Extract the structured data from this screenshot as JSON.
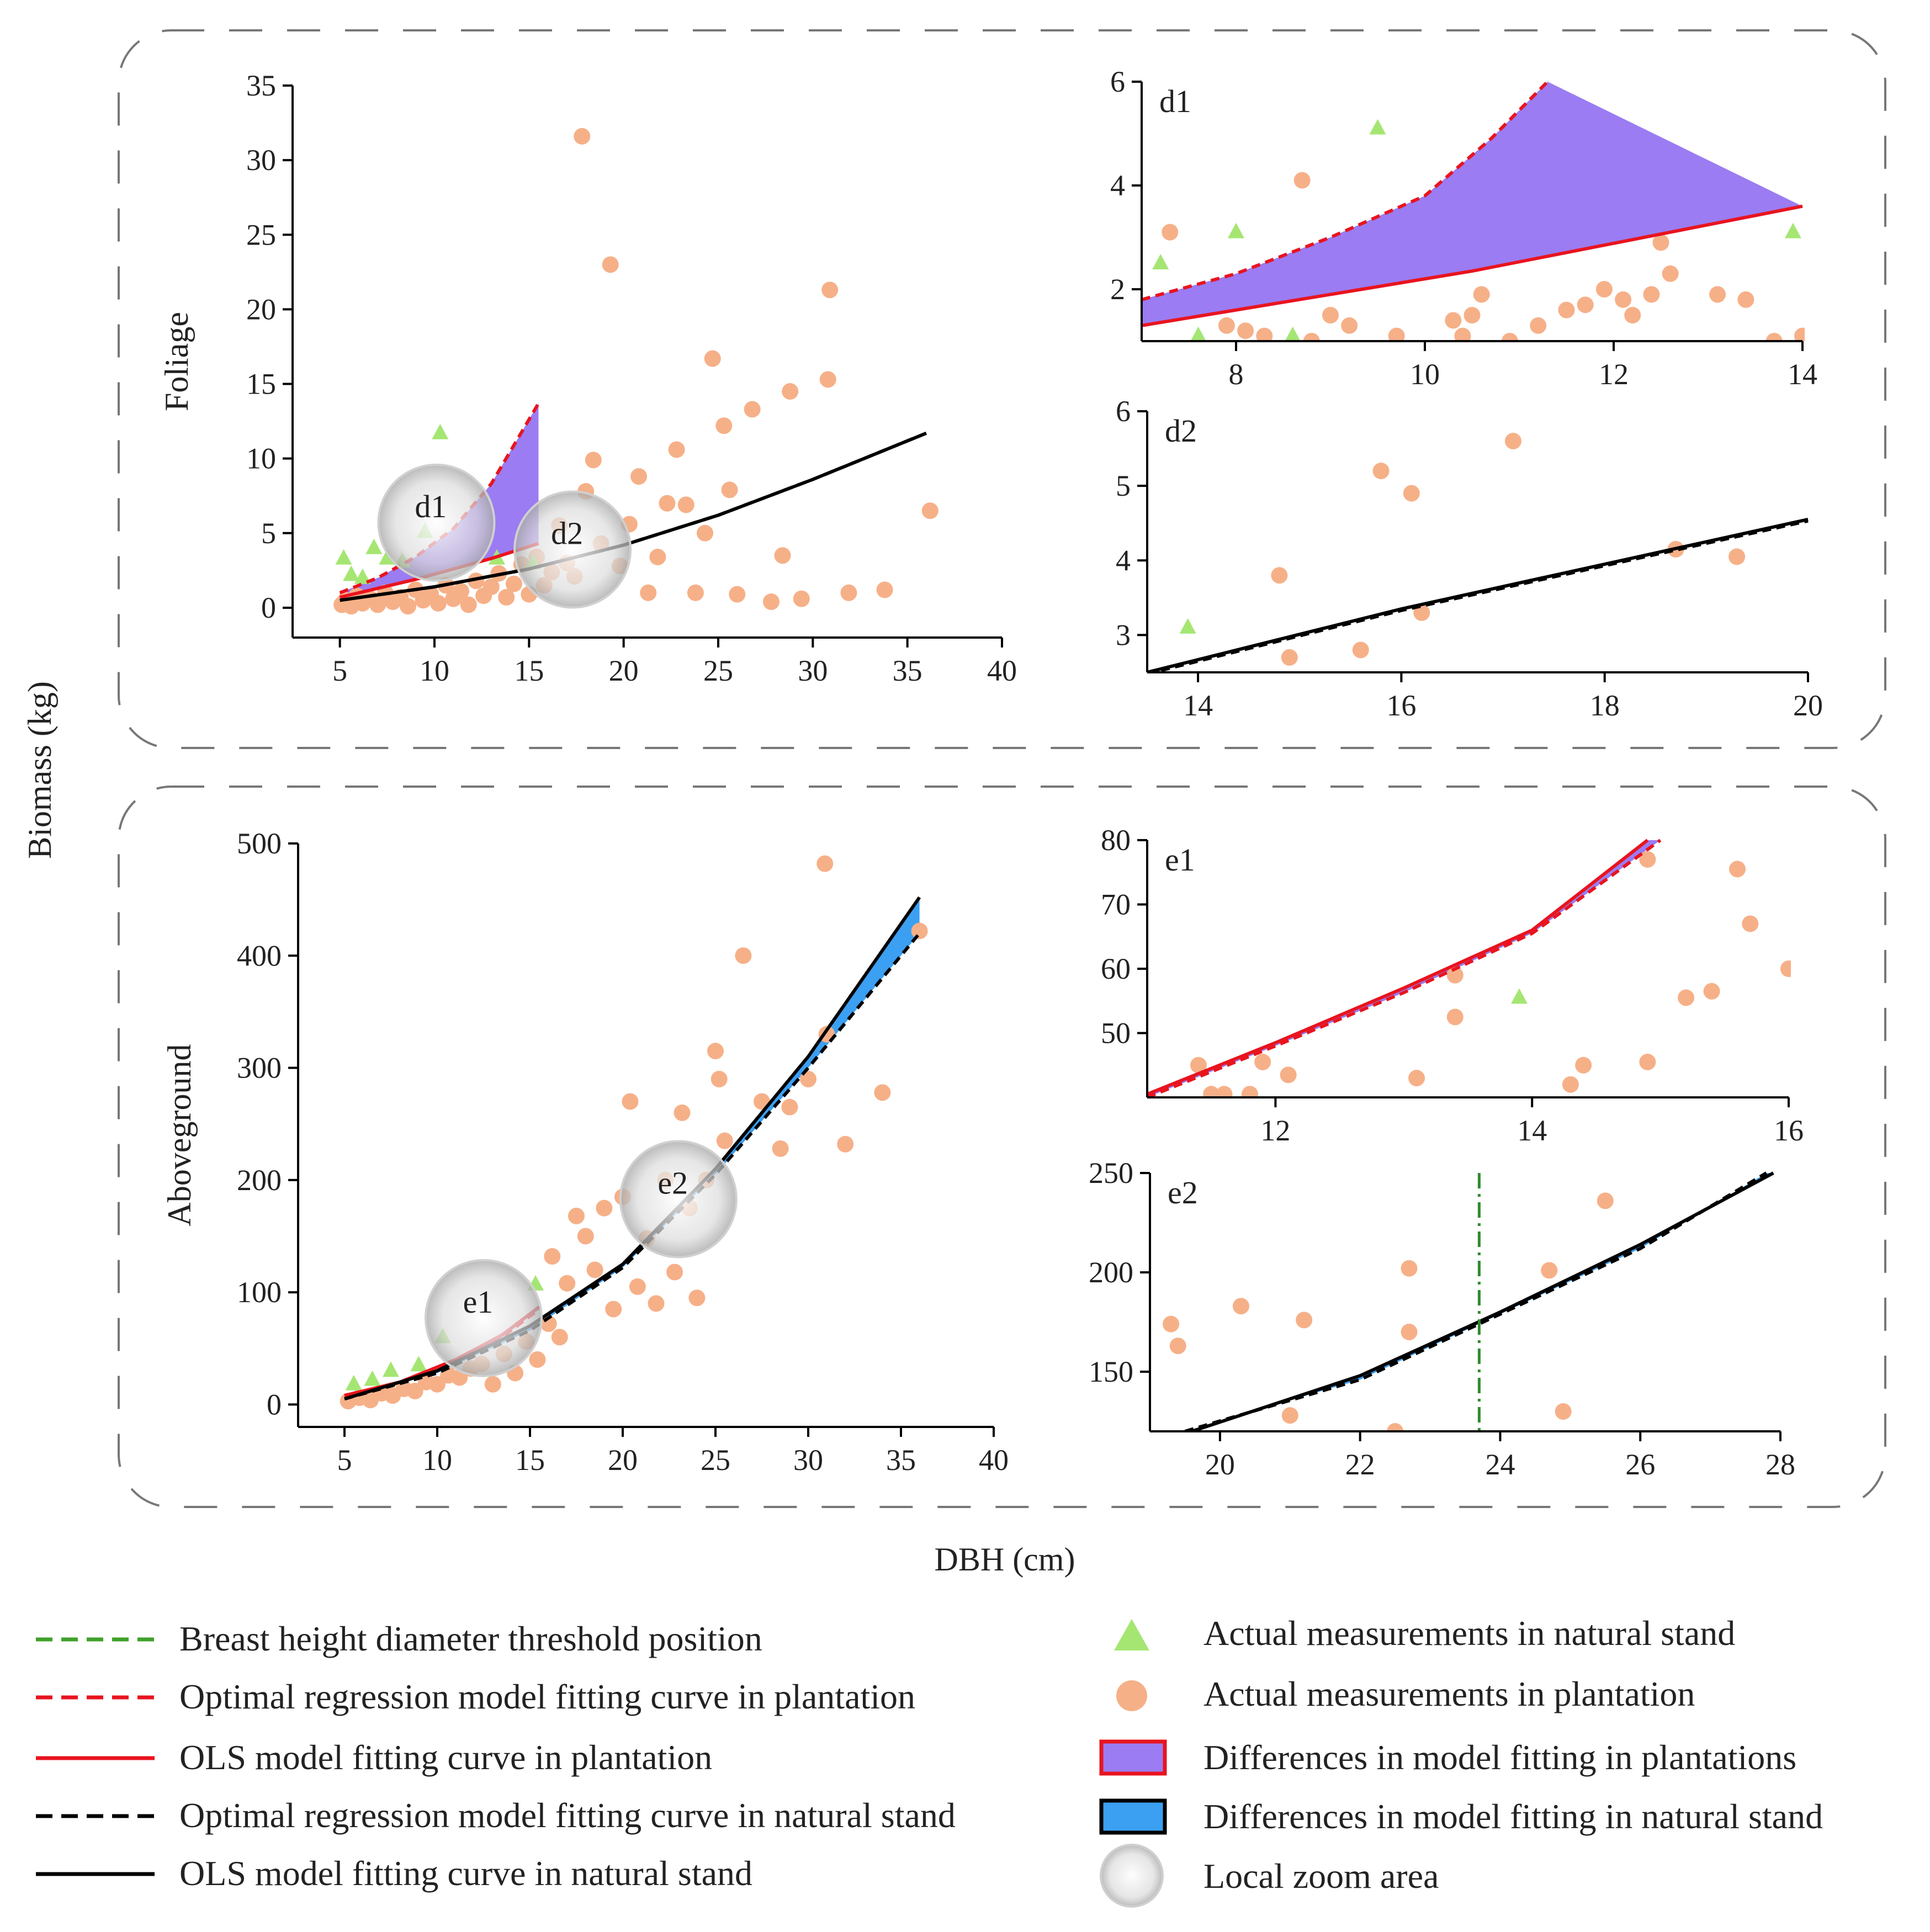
{
  "figure": {
    "ylabel": "Biomass (kg)",
    "xlabel": "DBH (cm)"
  },
  "colors": {
    "natural_points": "#9be36d",
    "plantation_points": "#f4a97c",
    "plantation_fill": "#9b7cf2",
    "natural_fill": "#3b9ff2",
    "plantation_ols": "#e8141f",
    "plantation_opt": "#e8141f",
    "natural_ols": "#000000",
    "natural_opt": "#000000",
    "threshold": "#2e8b2e"
  },
  "legend": {
    "left": [
      {
        "label": "Breast height diameter threshold position",
        "icon": "green-dashed-line"
      },
      {
        "label": "Optimal regression model fitting curve in plantation",
        "icon": "red-dashed-line"
      },
      {
        "label": "OLS model fitting curve in plantation",
        "icon": "red-solid-line"
      },
      {
        "label": "Optimal regression model fitting curve in natural stand",
        "icon": "black-dashed-line"
      },
      {
        "label": "OLS model fitting curve in natural stand",
        "icon": "black-solid-line"
      }
    ],
    "right": [
      {
        "label": "Actual measurements in natural stand",
        "icon": "green-triangle"
      },
      {
        "label": "Actual measurements in plantation",
        "icon": "orange-circle"
      },
      {
        "label": "Differences in model fitting in plantations",
        "icon": "purple-box"
      },
      {
        "label": "Differences in model fitting in natural stand",
        "icon": "blue-box"
      },
      {
        "label": "Local zoom area",
        "icon": "zoom-circle"
      }
    ]
  },
  "chart_data": [
    {
      "id": "foliage-main",
      "type": "scatter",
      "ylabel": "Foliage",
      "xlim": [
        2.5,
        40
      ],
      "ylim": [
        -2,
        35
      ],
      "xticks": [
        5,
        10,
        15,
        20,
        25,
        30,
        35,
        40
      ],
      "yticks": [
        0,
        5,
        10,
        15,
        20,
        25,
        30,
        35
      ],
      "zoom_areas": [
        {
          "label": "d1",
          "x": 10.1,
          "y": 5.7
        },
        {
          "label": "d2",
          "x": 17.3,
          "y": 3.9
        }
      ],
      "plantation_ols": [
        [
          5,
          0.7
        ],
        [
          7,
          1.3
        ],
        [
          9,
          1.9
        ],
        [
          11,
          2.6
        ],
        [
          13,
          3.3
        ],
        [
          15.5,
          4.3
        ]
      ],
      "plantation_opt": [
        [
          5,
          1.0
        ],
        [
          7,
          2.0
        ],
        [
          9,
          3.4
        ],
        [
          11,
          5.3
        ],
        [
          13,
          8.3
        ],
        [
          15.5,
          13.7
        ]
      ],
      "natural_ols": [
        [
          5,
          0.5
        ],
        [
          10,
          1.4
        ],
        [
          15,
          2.6
        ],
        [
          20,
          4.2
        ],
        [
          25,
          6.2
        ],
        [
          30,
          8.6
        ],
        [
          36,
          11.7
        ]
      ],
      "natural_opt": [
        [
          5,
          0.5
        ],
        [
          10,
          1.4
        ],
        [
          15,
          2.6
        ],
        [
          20,
          4.2
        ],
        [
          25,
          6.2
        ],
        [
          30,
          8.6
        ],
        [
          36,
          11.7
        ]
      ],
      "natural_points": [
        [
          5.2,
          3.3
        ],
        [
          5.6,
          2.2
        ],
        [
          6.2,
          2.0
        ],
        [
          6.8,
          4.0
        ],
        [
          7.5,
          3.3
        ],
        [
          8.3,
          3.1
        ],
        [
          10.3,
          11.7
        ],
        [
          9.5,
          5.1
        ],
        [
          13.3,
          3.3
        ],
        [
          15.2,
          3.0
        ]
      ],
      "plantation_points": [
        [
          5.1,
          0.2
        ],
        [
          5.3,
          0.5
        ],
        [
          5.6,
          0.1
        ],
        [
          5.9,
          0.8
        ],
        [
          6.2,
          0.3
        ],
        [
          6.6,
          0.6
        ],
        [
          7.0,
          0.2
        ],
        [
          7.4,
          1.0
        ],
        [
          7.8,
          0.4
        ],
        [
          8.2,
          0.7
        ],
        [
          8.6,
          0.1
        ],
        [
          9.0,
          1.2
        ],
        [
          9.4,
          0.5
        ],
        [
          9.8,
          0.9
        ],
        [
          10.2,
          0.3
        ],
        [
          10.6,
          1.5
        ],
        [
          11.0,
          0.6
        ],
        [
          11.4,
          1.1
        ],
        [
          11.8,
          0.2
        ],
        [
          12.2,
          1.8
        ],
        [
          12.6,
          0.8
        ],
        [
          13.0,
          1.4
        ],
        [
          13.4,
          2.3
        ],
        [
          13.8,
          0.7
        ],
        [
          14.2,
          1.6
        ],
        [
          14.6,
          2.9
        ],
        [
          15.0,
          0.9
        ],
        [
          15.4,
          3.4
        ],
        [
          15.8,
          1.5
        ],
        [
          16.2,
          2.4
        ],
        [
          16.6,
          5.5
        ],
        [
          17.0,
          3.0
        ],
        [
          17.4,
          2.1
        ],
        [
          17.8,
          31.6
        ],
        [
          18.0,
          7.8
        ],
        [
          18.4,
          9.9
        ],
        [
          18.8,
          4.3
        ],
        [
          19.3,
          23.0
        ],
        [
          19.8,
          2.8
        ],
        [
          20.3,
          5.6
        ],
        [
          20.8,
          8.8
        ],
        [
          21.3,
          1.0
        ],
        [
          21.8,
          3.4
        ],
        [
          22.3,
          7.0
        ],
        [
          22.8,
          10.6
        ],
        [
          23.3,
          6.9
        ],
        [
          23.8,
          1.0
        ],
        [
          24.3,
          5.0
        ],
        [
          24.7,
          16.7
        ],
        [
          25.3,
          12.2
        ],
        [
          25.6,
          7.9
        ],
        [
          26.0,
          0.9
        ],
        [
          26.8,
          13.3
        ],
        [
          27.8,
          0.4
        ],
        [
          28.4,
          3.5
        ],
        [
          28.8,
          14.5
        ],
        [
          29.4,
          0.6
        ],
        [
          30.8,
          15.3
        ],
        [
          30.9,
          21.3
        ],
        [
          31.9,
          1.0
        ],
        [
          33.8,
          1.2
        ],
        [
          36.2,
          6.5
        ]
      ]
    },
    {
      "id": "d1",
      "type": "scatter",
      "title": "d1",
      "xlim": [
        7,
        14
      ],
      "ylim": [
        1,
        6
      ],
      "xticks": [
        8,
        10,
        12,
        14
      ],
      "yticks": [
        2,
        4,
        6
      ],
      "plantation_ols": [
        [
          7,
          1.3
        ],
        [
          10.5,
          2.35
        ],
        [
          14,
          3.6
        ]
      ],
      "plantation_opt": [
        [
          7,
          1.8
        ],
        [
          8,
          2.3
        ],
        [
          9,
          3.0
        ],
        [
          10,
          3.8
        ],
        [
          10.7,
          4.9
        ],
        [
          11.3,
          6.0
        ]
      ],
      "natural_points": [
        [
          7.2,
          2.5
        ],
        [
          8.0,
          3.1
        ],
        [
          9.5,
          5.1
        ],
        [
          13.9,
          3.1
        ],
        [
          7.6,
          1.1
        ],
        [
          8.6,
          1.1
        ]
      ],
      "plantation_points": [
        [
          7.3,
          3.1
        ],
        [
          7.9,
          1.3
        ],
        [
          8.1,
          1.2
        ],
        [
          8.3,
          1.1
        ],
        [
          8.7,
          4.1
        ],
        [
          8.8,
          1.0
        ],
        [
          9.0,
          1.5
        ],
        [
          9.2,
          1.3
        ],
        [
          9.7,
          1.1
        ],
        [
          10.3,
          1.4
        ],
        [
          10.4,
          1.1
        ],
        [
          10.5,
          1.5
        ],
        [
          10.6,
          1.9
        ],
        [
          10.9,
          1.0
        ],
        [
          11.2,
          1.3
        ],
        [
          11.5,
          1.6
        ],
        [
          11.7,
          1.7
        ],
        [
          11.9,
          2.0
        ],
        [
          12.1,
          1.8
        ],
        [
          12.2,
          1.5
        ],
        [
          12.4,
          1.9
        ],
        [
          12.5,
          2.9
        ],
        [
          12.6,
          2.3
        ],
        [
          13.1,
          1.9
        ],
        [
          13.4,
          1.8
        ],
        [
          13.7,
          1.0
        ],
        [
          14.0,
          1.1
        ]
      ]
    },
    {
      "id": "d2",
      "type": "scatter",
      "title": "d2",
      "xlim": [
        13.5,
        20
      ],
      "ylim": [
        2.5,
        6
      ],
      "xticks": [
        14,
        16,
        18,
        20
      ],
      "yticks": [
        3,
        4,
        5,
        6
      ],
      "natural_ols": [
        [
          13.5,
          2.5
        ],
        [
          16,
          3.35
        ],
        [
          18,
          3.95
        ],
        [
          20,
          4.55
        ]
      ],
      "natural_opt": [
        [
          13.5,
          2.48
        ],
        [
          16,
          3.33
        ],
        [
          18,
          3.93
        ],
        [
          20,
          4.53
        ]
      ],
      "natural_points": [
        [
          13.9,
          3.1
        ]
      ],
      "plantation_points": [
        [
          14.8,
          3.8
        ],
        [
          14.9,
          2.7
        ],
        [
          15.6,
          2.8
        ],
        [
          15.8,
          5.2
        ],
        [
          16.1,
          4.9
        ],
        [
          16.2,
          3.3
        ],
        [
          17.1,
          5.6
        ],
        [
          18.7,
          4.15
        ],
        [
          19.3,
          4.05
        ]
      ]
    },
    {
      "id": "aboveground-main",
      "type": "scatter",
      "ylabel": "Aboveground",
      "xlim": [
        2.5,
        40
      ],
      "ylim": [
        -20,
        500
      ],
      "xticks": [
        5,
        10,
        15,
        20,
        25,
        30,
        35,
        40
      ],
      "yticks": [
        0,
        100,
        200,
        300,
        400,
        500
      ],
      "zoom_areas": [
        {
          "label": "e1",
          "x": 12.5,
          "y": 77
        },
        {
          "label": "e2",
          "x": 23.0,
          "y": 183
        }
      ],
      "plantation_ols": [
        [
          5,
          8
        ],
        [
          8,
          20
        ],
        [
          11,
          40
        ],
        [
          13.5,
          62
        ],
        [
          15.5,
          87
        ]
      ],
      "plantation_opt": [
        [
          5,
          8
        ],
        [
          8,
          19
        ],
        [
          11,
          38
        ],
        [
          13.5,
          60
        ],
        [
          15.5,
          85
        ]
      ],
      "natural_ols": [
        [
          5,
          5
        ],
        [
          10,
          30
        ],
        [
          15,
          70
        ],
        [
          20,
          125
        ],
        [
          25,
          210
        ],
        [
          30,
          310
        ],
        [
          36,
          452
        ]
      ],
      "natural_opt": [
        [
          5,
          5
        ],
        [
          10,
          28
        ],
        [
          15,
          66
        ],
        [
          20,
          122
        ],
        [
          25,
          205
        ],
        [
          30,
          300
        ],
        [
          36,
          420
        ]
      ],
      "natural_points": [
        [
          5.5,
          18
        ],
        [
          6.5,
          22
        ],
        [
          7.5,
          30
        ],
        [
          9,
          35
        ],
        [
          10.3,
          60
        ],
        [
          15.3,
          107
        ]
      ],
      "plantation_points": [
        [
          5.2,
          3
        ],
        [
          5.8,
          6
        ],
        [
          6.4,
          4
        ],
        [
          7.0,
          10
        ],
        [
          7.6,
          8
        ],
        [
          8.2,
          14
        ],
        [
          8.8,
          12
        ],
        [
          9.4,
          20
        ],
        [
          10.0,
          18
        ],
        [
          10.6,
          26
        ],
        [
          11.2,
          24
        ],
        [
          11.8,
          32
        ],
        [
          12.4,
          36
        ],
        [
          13.0,
          18
        ],
        [
          13.6,
          45
        ],
        [
          14.2,
          28
        ],
        [
          14.8,
          56
        ],
        [
          15.4,
          40
        ],
        [
          16.0,
          72
        ],
        [
          16.2,
          132
        ],
        [
          16.6,
          60
        ],
        [
          17.0,
          108
        ],
        [
          17.5,
          168
        ],
        [
          18.0,
          150
        ],
        [
          18.5,
          120
        ],
        [
          19.0,
          175
        ],
        [
          19.5,
          85
        ],
        [
          20.0,
          185
        ],
        [
          20.4,
          270
        ],
        [
          20.8,
          105
        ],
        [
          21.3,
          148
        ],
        [
          21.8,
          90
        ],
        [
          22.3,
          200
        ],
        [
          22.8,
          118
        ],
        [
          23.2,
          260
        ],
        [
          23.6,
          175
        ],
        [
          24.0,
          95
        ],
        [
          24.5,
          200
        ],
        [
          25.0,
          315
        ],
        [
          25.2,
          290
        ],
        [
          25.5,
          235
        ],
        [
          26.5,
          400
        ],
        [
          27.5,
          270
        ],
        [
          28.5,
          228
        ],
        [
          29.0,
          265
        ],
        [
          30.0,
          290
        ],
        [
          31.0,
          330
        ],
        [
          30.9,
          482
        ],
        [
          32.0,
          232
        ],
        [
          34.0,
          278
        ],
        [
          36.0,
          422
        ]
      ]
    },
    {
      "id": "e1",
      "type": "scatter",
      "title": "e1",
      "xlim": [
        11,
        16
      ],
      "ylim": [
        40,
        80
      ],
      "xticks": [
        12,
        14,
        16
      ],
      "yticks": [
        50,
        60,
        70,
        80
      ],
      "plantation_ols": [
        [
          11,
          40.5
        ],
        [
          12,
          48.5
        ],
        [
          13,
          57
        ],
        [
          14,
          66
        ],
        [
          14.9,
          80
        ]
      ],
      "plantation_opt": [
        [
          11,
          40
        ],
        [
          12,
          48
        ],
        [
          13,
          56.3
        ],
        [
          14,
          65.5
        ],
        [
          15.0,
          80
        ]
      ],
      "natural_points": [
        [
          13.9,
          55.5
        ]
      ],
      "plantation_points": [
        [
          11.4,
          45
        ],
        [
          11.5,
          40.5
        ],
        [
          11.6,
          40.5
        ],
        [
          11.8,
          40.5
        ],
        [
          11.9,
          45.5
        ],
        [
          12.1,
          43.5
        ],
        [
          13.1,
          43
        ],
        [
          13.4,
          52.5
        ],
        [
          13.4,
          59
        ],
        [
          14.3,
          42
        ],
        [
          14.4,
          45
        ],
        [
          14.9,
          77
        ],
        [
          14.9,
          45.5
        ],
        [
          15.2,
          55.5
        ],
        [
          15.4,
          56.5
        ],
        [
          15.6,
          75.5
        ],
        [
          15.7,
          67
        ],
        [
          16.0,
          60
        ]
      ]
    },
    {
      "id": "e2",
      "type": "scatter",
      "title": "e2",
      "xlim": [
        19,
        28
      ],
      "ylim": [
        120,
        250
      ],
      "xticks": [
        20,
        22,
        24,
        26,
        28
      ],
      "yticks": [
        150,
        200,
        250
      ],
      "threshold_x": 23.7,
      "natural_ols": [
        [
          19.6,
          120
        ],
        [
          22,
          148
        ],
        [
          24,
          180
        ],
        [
          26,
          214
        ],
        [
          27.9,
          250
        ]
      ],
      "natural_opt": [
        [
          19.5,
          120
        ],
        [
          22,
          146
        ],
        [
          24,
          179
        ],
        [
          26,
          212
        ],
        [
          27.8,
          250
        ]
      ],
      "plantation_points": [
        [
          19.3,
          174
        ],
        [
          19.4,
          163
        ],
        [
          20.3,
          183
        ],
        [
          21.0,
          128
        ],
        [
          21.2,
          176
        ],
        [
          22.5,
          120
        ],
        [
          22.7,
          202
        ],
        [
          22.7,
          170
        ],
        [
          24.7,
          201
        ],
        [
          24.9,
          130
        ],
        [
          25.5,
          236
        ]
      ]
    }
  ]
}
